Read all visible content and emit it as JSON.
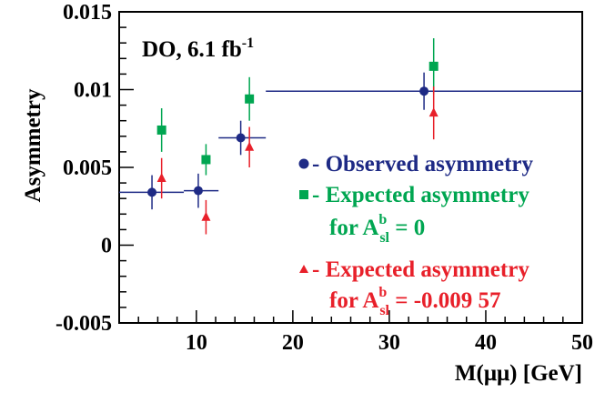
{
  "chart_data": {
    "type": "scatter",
    "annotation": {
      "text": "DO, 6.1 fb",
      "sup": "-1"
    },
    "xlabel": "M(μμ) [GeV]",
    "ylabel": "Asymmetry",
    "xlim": [
      2,
      50
    ],
    "ylim": [
      -0.005,
      0.015
    ],
    "xticks": [
      10,
      20,
      30,
      40,
      50
    ],
    "xtick_labels": [
      "10",
      "20",
      "30",
      "40",
      "50"
    ],
    "yticks": [
      -0.005,
      0,
      0.005,
      0.01,
      0.015
    ],
    "ytick_labels": [
      "-0.005",
      "0",
      "0.005",
      "0.01",
      "0.015"
    ],
    "grid": false,
    "legend_position": "right",
    "series": [
      {
        "legend": [
          "- Observed asymmetry"
        ],
        "marker": "circle",
        "color": "#1e2a85",
        "points": [
          {
            "x": 5.4,
            "y": 0.0034,
            "xlo": 2,
            "xhi": 8.7,
            "yerr": 0.0011
          },
          {
            "x": 10.2,
            "y": 0.0035,
            "xlo": 8.7,
            "xhi": 12.3,
            "yerr": 0.0011
          },
          {
            "x": 14.6,
            "y": 0.0069,
            "xlo": 12.3,
            "xhi": 17.2,
            "yerr": 0.0011
          },
          {
            "x": 33.6,
            "y": 0.0099,
            "xlo": 17.2,
            "xhi": 50,
            "yerr": 0.0012
          }
        ]
      },
      {
        "legend": [
          "- Expected asymmetry",
          "for A",
          "b",
          "sl",
          " = 0"
        ],
        "marker": "square",
        "color": "#00a651",
        "points": [
          {
            "x": 6.4,
            "y": 0.0074,
            "yerr": 0.0014
          },
          {
            "x": 11.0,
            "y": 0.0055,
            "yerr": 0.001
          },
          {
            "x": 15.5,
            "y": 0.0094,
            "yerr": 0.0014
          },
          {
            "x": 34.6,
            "y": 0.0115,
            "yerr": 0.0018
          }
        ]
      },
      {
        "legend": [
          "- Expected asymmetry",
          "for A",
          "b",
          "sl",
          " = -0.009 57"
        ],
        "marker": "triangle",
        "color": "#e8202a",
        "points": [
          {
            "x": 6.4,
            "y": 0.0043,
            "yerr": 0.0013
          },
          {
            "x": 11.0,
            "y": 0.0018,
            "yerr": 0.0011
          },
          {
            "x": 15.5,
            "y": 0.0063,
            "yerr": 0.0013
          },
          {
            "x": 34.6,
            "y": 0.0085,
            "yerr": 0.0017
          }
        ]
      }
    ]
  }
}
